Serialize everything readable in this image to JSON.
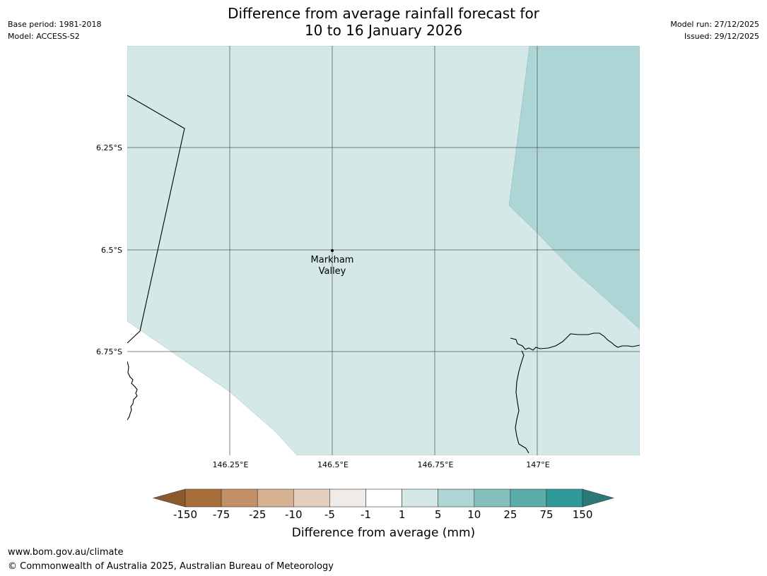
{
  "title": {
    "line1": "Difference from average rainfall forecast for",
    "line2": "10 to 16 January 2026"
  },
  "meta_left": {
    "base_period": "Base period: 1981-2018",
    "model": "Model: ACCESS-S2"
  },
  "meta_right": {
    "model_run": "Model run: 27/12/2025",
    "issued": "Issued: 29/12/2025"
  },
  "map": {
    "lat_labels": [
      "6.25°S",
      "6.5°S",
      "6.75°S"
    ],
    "lon_labels": [
      "146.25°E",
      "146.5°E",
      "146.75°E",
      "147°E"
    ],
    "place": {
      "name_line1": "Markham",
      "name_line2": "Valley",
      "lat": -6.5,
      "lon": 146.5
    }
  },
  "colorbar": {
    "tick_labels": [
      "-150",
      "-75",
      "-25",
      "-10",
      "-5",
      "-1",
      "1",
      "5",
      "10",
      "25",
      "75",
      "150"
    ],
    "colors": [
      "#a96f3a",
      "#c29168",
      "#d6b192",
      "#e6d0bd",
      "#efebe7",
      "#ffffff",
      "#d4e8e7",
      "#aed5d5",
      "#84c0be",
      "#5aadab",
      "#2f9a97"
    ],
    "under_color": "#8d5a2e",
    "over_color": "#2a7a77",
    "title": "Difference from average (mm)"
  },
  "footer": {
    "url": "www.bom.gov.au/climate",
    "copyright": "© Commonwealth of Australia 2025, Australian Bureau of Meteorology"
  }
}
